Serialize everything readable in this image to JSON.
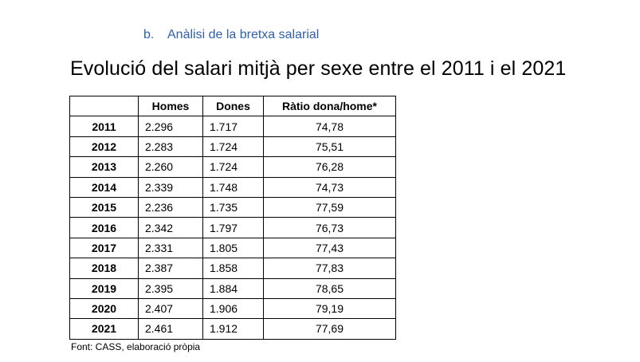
{
  "subheading": {
    "marker": "b.",
    "text": "Anàlisi de la bretxa salarial"
  },
  "title": "Evolució del salari mitjà per sexe entre el 2011 i el 2021",
  "table": {
    "columns": [
      "",
      "Homes",
      "Dones",
      "Ràtio dona/home*"
    ],
    "rows": [
      {
        "year": "2011",
        "homes": "2.296",
        "dones": "1.717",
        "ratio": "74,78"
      },
      {
        "year": "2012",
        "homes": "2.283",
        "dones": "1.724",
        "ratio": "75,51"
      },
      {
        "year": "2013",
        "homes": "2.260",
        "dones": "1.724",
        "ratio": "76,28"
      },
      {
        "year": "2014",
        "homes": "2.339",
        "dones": "1.748",
        "ratio": "74,73"
      },
      {
        "year": "2015",
        "homes": "2.236",
        "dones": "1.735",
        "ratio": "77,59"
      },
      {
        "year": "2016",
        "homes": "2.342",
        "dones": "1.797",
        "ratio": "76,73"
      },
      {
        "year": "2017",
        "homes": "2.331",
        "dones": "1.805",
        "ratio": "77,43"
      },
      {
        "year": "2018",
        "homes": "2.387",
        "dones": "1.858",
        "ratio": "77,83"
      },
      {
        "year": "2019",
        "homes": "2.395",
        "dones": "1.884",
        "ratio": "78,65"
      },
      {
        "year": "2020",
        "homes": "2.407",
        "dones": "1.906",
        "ratio": "79,19"
      },
      {
        "year": "2021",
        "homes": "2.461",
        "dones": "1.912",
        "ratio": "77,69"
      }
    ]
  },
  "source": "Font: CASS, elaboració pròpia"
}
